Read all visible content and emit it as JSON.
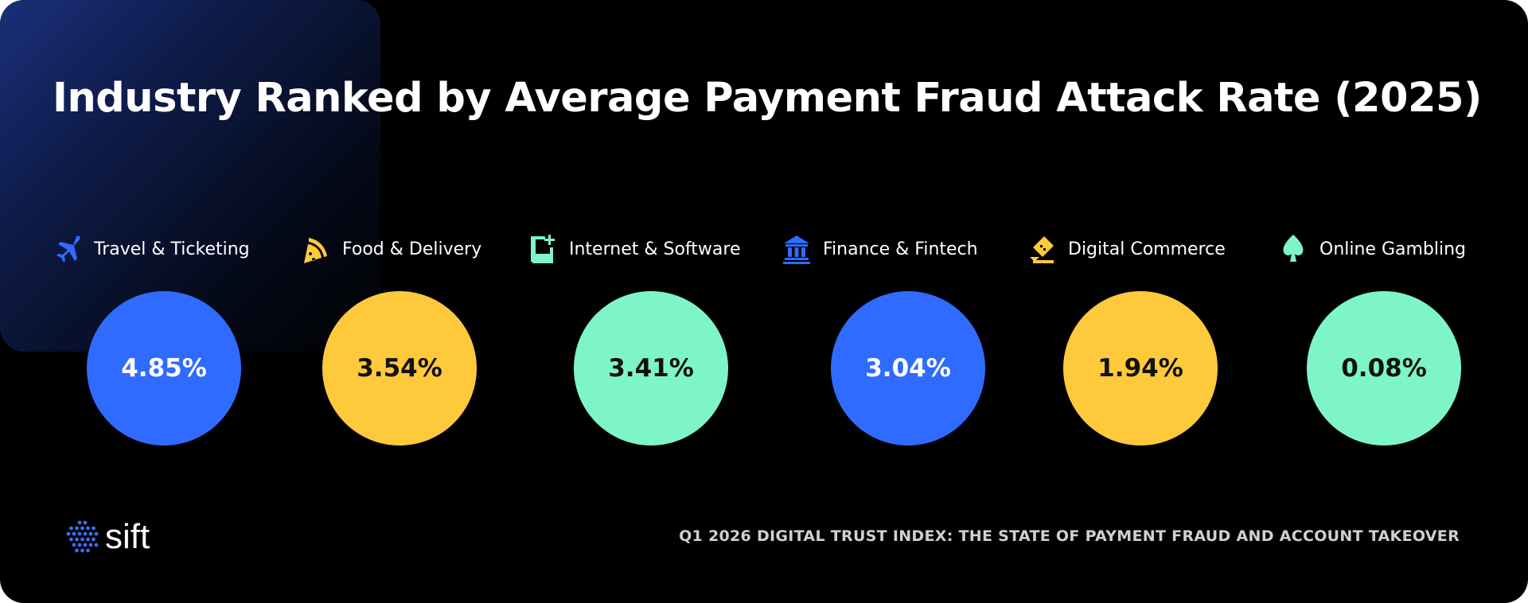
{
  "chart_data": {
    "type": "bubble-ranking",
    "title": "Industry Ranked by Average Payment Fraud Attack Rate (2025)",
    "unit": "%",
    "categories": [
      "Travel & Ticketing",
      "Food & Delivery",
      "Internet & Software",
      "Finance & Fintech",
      "Digital Commerce",
      "Online Gambling"
    ],
    "values": [
      4.85,
      3.54,
      3.41,
      3.04,
      1.94,
      0.08
    ],
    "value_labels": [
      "4.85%",
      "3.54%",
      "3.41%",
      "3.04%",
      "1.94%",
      "0.08%"
    ],
    "colors": [
      "#2f6bff",
      "#ffc93c",
      "#7ef5c8",
      "#2f6bff",
      "#ffc93c",
      "#7ef5c8"
    ],
    "icons": [
      "airplane-icon",
      "pizza-icon",
      "flask-icon",
      "bank-icon",
      "ticket-icon",
      "spade-icon"
    ]
  },
  "footer": {
    "logo": "sift",
    "source": "Q1 2026 DIGITAL TRUST INDEX: THE STATE OF PAYMENT FRAUD AND ACCOUNT TAKEOVER"
  }
}
